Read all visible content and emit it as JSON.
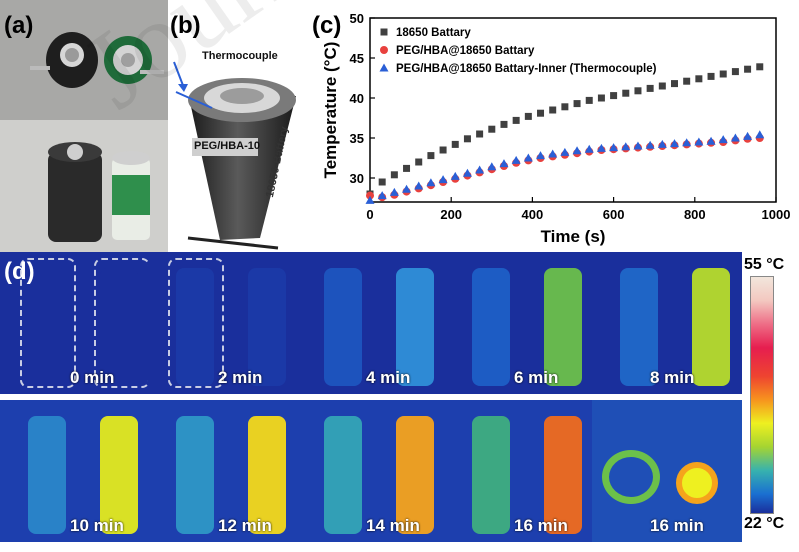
{
  "panels": {
    "a": "(a)",
    "b": "(b)",
    "c": "(c)",
    "d": "(d)"
  },
  "panel_b": {
    "thermocouple_label": "Thermocouple",
    "sleeve_label": "PEG/HBA-10",
    "battery_label": "18650-Battery"
  },
  "watermark": "Journal Pre-proof",
  "chart_data": {
    "type": "scatter",
    "title": "",
    "xlabel": "Time (s)",
    "ylabel": "Temperature (°C)",
    "xlim": [
      0,
      1000
    ],
    "ylim": [
      27,
      50
    ],
    "xticks": [
      0,
      200,
      400,
      600,
      800,
      1000
    ],
    "yticks": [
      30,
      35,
      40,
      45,
      50
    ],
    "legend_position": "top-left",
    "series": [
      {
        "name": "18650 Battary",
        "marker": "square",
        "color": "#404040",
        "x": [
          0,
          30,
          60,
          90,
          120,
          150,
          180,
          210,
          240,
          270,
          300,
          330,
          360,
          390,
          420,
          450,
          480,
          510,
          540,
          570,
          600,
          630,
          660,
          690,
          720,
          750,
          780,
          810,
          840,
          870,
          900,
          930,
          960
        ],
        "y": [
          28,
          29.5,
          30.4,
          31.2,
          32,
          32.8,
          33.5,
          34.2,
          34.9,
          35.5,
          36.1,
          36.7,
          37.2,
          37.7,
          38.1,
          38.5,
          38.9,
          39.3,
          39.7,
          40,
          40.3,
          40.6,
          40.9,
          41.2,
          41.5,
          41.8,
          42.1,
          42.4,
          42.7,
          43,
          43.3,
          43.6,
          43.9
        ]
      },
      {
        "name": "PEG/HBA@18650 Battary",
        "marker": "circle",
        "color": "#e8413e",
        "x": [
          0,
          30,
          60,
          90,
          120,
          150,
          180,
          210,
          240,
          270,
          300,
          330,
          360,
          390,
          420,
          450,
          480,
          510,
          540,
          570,
          600,
          630,
          660,
          690,
          720,
          750,
          780,
          810,
          840,
          870,
          900,
          930,
          960
        ],
        "y": [
          27.8,
          27.6,
          27.9,
          28.3,
          28.7,
          29.1,
          29.5,
          29.9,
          30.3,
          30.7,
          31.1,
          31.5,
          31.9,
          32.2,
          32.5,
          32.7,
          32.9,
          33.1,
          33.3,
          33.5,
          33.6,
          33.7,
          33.8,
          33.9,
          34,
          34.1,
          34.2,
          34.3,
          34.4,
          34.5,
          34.7,
          34.9,
          35
        ]
      },
      {
        "name": "PEG/HBA@18650 Battary-Inner (Thermocouple)",
        "marker": "triangle",
        "color": "#2a5fd6",
        "x": [
          0,
          30,
          60,
          90,
          120,
          150,
          180,
          210,
          240,
          270,
          300,
          330,
          360,
          390,
          420,
          450,
          480,
          510,
          540,
          570,
          600,
          630,
          660,
          690,
          720,
          750,
          780,
          810,
          840,
          870,
          900,
          930,
          960
        ],
        "y": [
          27.2,
          27.8,
          28.2,
          28.6,
          29,
          29.4,
          29.8,
          30.2,
          30.6,
          31,
          31.4,
          31.8,
          32.2,
          32.5,
          32.8,
          33,
          33.2,
          33.4,
          33.6,
          33.7,
          33.8,
          33.9,
          34,
          34.1,
          34.2,
          34.3,
          34.4,
          34.5,
          34.6,
          34.8,
          35,
          35.2,
          35.4
        ]
      }
    ]
  },
  "thermal": {
    "colorbar": {
      "max_label": "55 °C",
      "min_label": "22 °C"
    },
    "frames": [
      {
        "time": "0 min",
        "left": "#1a2f9c",
        "right": "#1a2f9c",
        "outline": true
      },
      {
        "time": "2 min",
        "left": "#1b3aa8",
        "right": "#1b3aa8",
        "outline": true
      },
      {
        "time": "4 min",
        "left": "#1d55bf",
        "right": "#2f8fd8",
        "outline": false
      },
      {
        "time": "6 min",
        "left": "#1e5fc6",
        "right": "#6cc04a",
        "outline": false
      },
      {
        "time": "8 min",
        "left": "#2068c8",
        "right": "#b7dc2a",
        "outline": false
      },
      {
        "time": "10 min",
        "left": "#2a86c9",
        "right": "#e4ea1e",
        "outline": false
      },
      {
        "time": "12 min",
        "left": "#2e97c6",
        "right": "#f4d91a",
        "outline": false
      },
      {
        "time": "14 min",
        "left": "#34a4b6",
        "right": "#f5a31c",
        "outline": false
      },
      {
        "time": "16 min",
        "left": "#3fae7f",
        "right": "#f06c1e",
        "outline": false
      },
      {
        "time": "16 min",
        "left": "#2a5fbf",
        "right": "#2a5fbf",
        "outline": false,
        "topview": true
      }
    ]
  }
}
